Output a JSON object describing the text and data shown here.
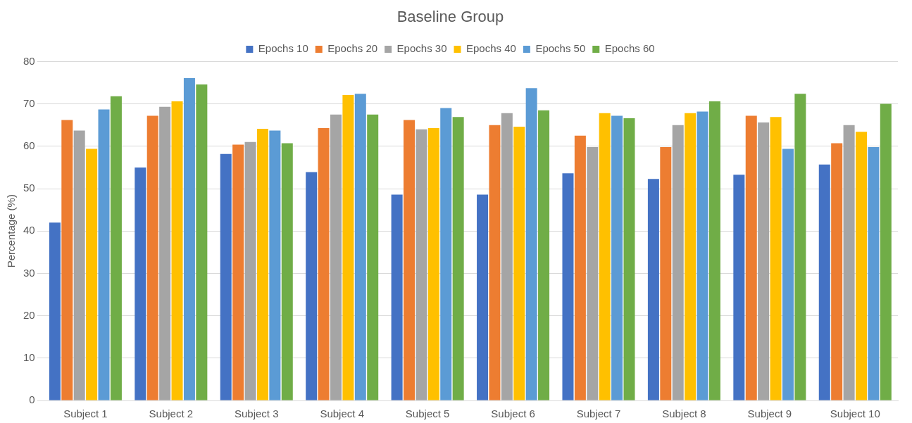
{
  "chart_data": {
    "type": "bar",
    "title": "Baseline Group",
    "ylabel": "Percentage (%)",
    "categories": [
      "Subject 1",
      "Subject 2",
      "Subject 3",
      "Subject 4",
      "Subject 5",
      "Subject 6",
      "Subject 7",
      "Subject 8",
      "Subject 9",
      "Subject 10"
    ],
    "series": [
      {
        "name": "Epochs 10",
        "color": "#4472c4",
        "values": [
          42,
          55,
          58.2,
          53.9,
          48.6,
          48.6,
          53.6,
          52.3,
          53.3,
          55.7
        ]
      },
      {
        "name": "Epochs 20",
        "color": "#ed7d31",
        "values": [
          66.2,
          67.2,
          60.4,
          64.3,
          66.2,
          65,
          62.5,
          59.8,
          67.2,
          60.7
        ]
      },
      {
        "name": "Epochs 30",
        "color": "#a5a5a5",
        "values": [
          63.7,
          69.3,
          61,
          67.5,
          64,
          67.8,
          59.8,
          65,
          65.6,
          65
        ]
      },
      {
        "name": "Epochs 40",
        "color": "#ffc000",
        "values": [
          59.4,
          70.6,
          64.1,
          72.1,
          64.3,
          64.6,
          67.8,
          67.8,
          66.9,
          63.4
        ]
      },
      {
        "name": "Epochs 50",
        "color": "#5b9bd5",
        "values": [
          68.7,
          76.1,
          63.7,
          72.4,
          69,
          73.7,
          67.2,
          68.2,
          59.4,
          59.8
        ]
      },
      {
        "name": "Epochs 60",
        "color": "#70ad47",
        "values": [
          71.8,
          74.6,
          60.7,
          67.5,
          66.9,
          68.5,
          66.6,
          70.6,
          72.4,
          70
        ]
      }
    ],
    "ylim": [
      0,
      80
    ],
    "yticks": [
      0,
      10,
      20,
      30,
      40,
      50,
      60,
      70,
      80
    ],
    "grid": "y",
    "legend": "top"
  }
}
